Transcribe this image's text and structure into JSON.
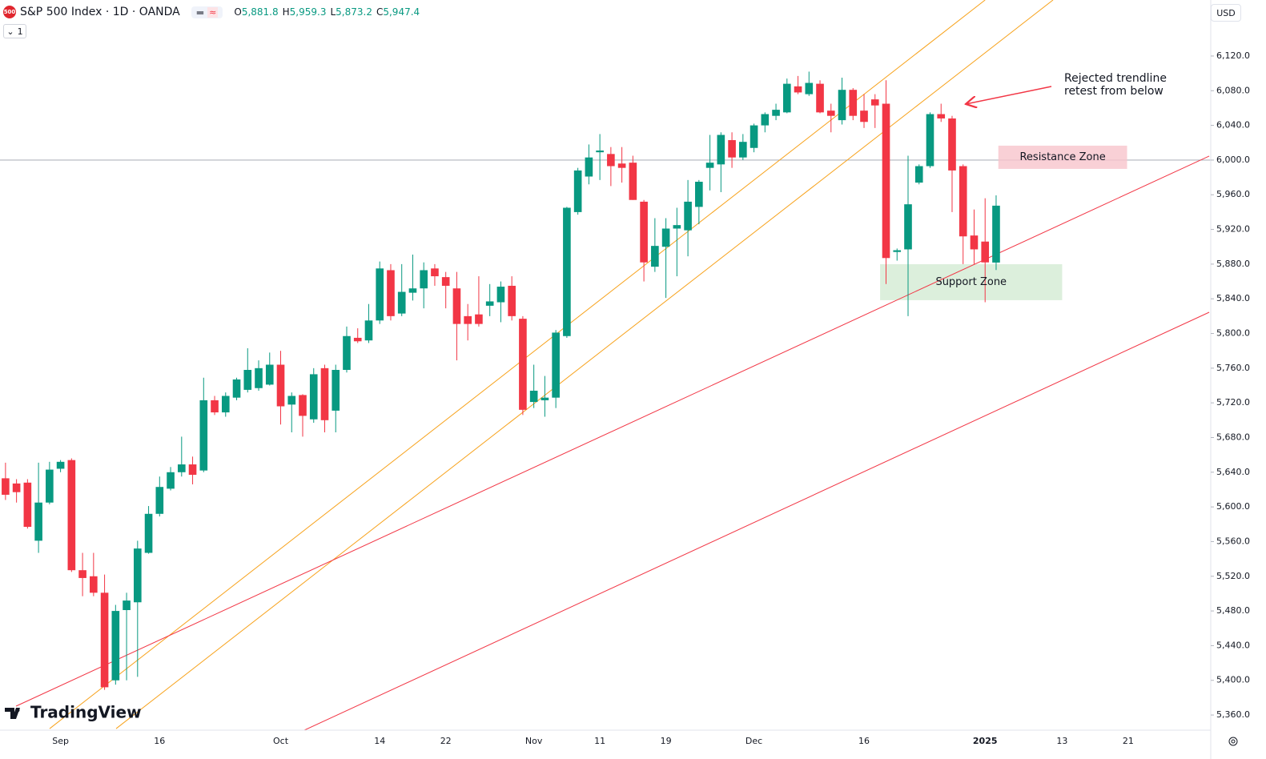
{
  "header": {
    "badge": "500",
    "title": "S&P 500 Index · 1D · OANDA",
    "ohlc": [
      {
        "label": "O",
        "value": "5,881.8"
      },
      {
        "label": "H",
        "value": "5,959.3"
      },
      {
        "label": "L",
        "value": "5,873.2"
      },
      {
        "label": "C",
        "value": "5,947.4"
      }
    ],
    "collapse_button": "1",
    "currency": "USD",
    "brand": "TradingView"
  },
  "chart_data": {
    "type": "candlestick",
    "up_color": "#089981",
    "down_color": "#f23645",
    "grid": false,
    "categories": [
      null,
      null,
      null,
      null,
      null,
      "Sep",
      null,
      null,
      null,
      null,
      null,
      null,
      null,
      null,
      "16",
      null,
      null,
      null,
      null,
      null,
      null,
      null,
      null,
      null,
      null,
      "Oct",
      null,
      null,
      null,
      null,
      null,
      null,
      null,
      null,
      "14",
      null,
      null,
      null,
      null,
      null,
      "22",
      null,
      null,
      null,
      null,
      null,
      null,
      null,
      "Nov",
      null,
      null,
      null,
      null,
      null,
      "11",
      null,
      null,
      null,
      null,
      null,
      "19",
      null,
      null,
      null,
      null,
      null,
      null,
      null,
      "Dec",
      null,
      null,
      null,
      null,
      null,
      null,
      null,
      null,
      null,
      "16",
      null,
      null,
      null,
      null,
      null,
      null,
      null,
      null,
      null,
      null,
      "2025",
      null,
      null,
      null,
      null,
      null,
      null,
      "13",
      null,
      null,
      null,
      null,
      null,
      "21",
      null,
      null,
      null,
      null,
      null,
      null,
      null
    ],
    "ohlc": [
      [
        5633,
        5651,
        5608,
        5614
      ],
      [
        5627,
        5632,
        5605,
        5617
      ],
      [
        5628,
        5632,
        5575,
        5577
      ],
      [
        5561,
        5651,
        5547,
        5605
      ],
      [
        5605,
        5652,
        5603,
        5643
      ],
      [
        5644,
        5654,
        5640,
        5652
      ],
      [
        5654,
        5656,
        5525,
        5527
      ],
      [
        5527,
        5547,
        5497,
        5518
      ],
      [
        5520,
        5547,
        5497,
        5501
      ],
      [
        5501,
        5522,
        5389,
        5392
      ],
      [
        5400,
        5487,
        5395,
        5480
      ],
      [
        5481,
        5501,
        5400,
        5492
      ],
      [
        5490,
        5561,
        5404,
        5552
      ],
      [
        5547,
        5601,
        5546,
        5592
      ],
      [
        5592,
        5635,
        5589,
        5623
      ],
      [
        5621,
        5646,
        5619,
        5640
      ],
      [
        5640,
        5681,
        5635,
        5649
      ],
      [
        5649,
        5658,
        5626,
        5637
      ],
      [
        5642,
        5749,
        5640,
        5723
      ],
      [
        5723,
        5728,
        5706,
        5709
      ],
      [
        5709,
        5732,
        5704,
        5728
      ],
      [
        5726,
        5749,
        5723,
        5747
      ],
      [
        5735,
        5783,
        5732,
        5758
      ],
      [
        5737,
        5769,
        5734,
        5760
      ],
      [
        5741,
        5778,
        5740,
        5764
      ],
      [
        5764,
        5780,
        5695,
        5716
      ],
      [
        5718,
        5732,
        5686,
        5728
      ],
      [
        5729,
        5730,
        5681,
        5705
      ],
      [
        5701,
        5760,
        5697,
        5753
      ],
      [
        5760,
        5764,
        5686,
        5700
      ],
      [
        5711,
        5764,
        5686,
        5758
      ],
      [
        5758,
        5808,
        5755,
        5797
      ],
      [
        5795,
        5806,
        5789,
        5791
      ],
      [
        5792,
        5834,
        5789,
        5815
      ],
      [
        5815,
        5883,
        5811,
        5875
      ],
      [
        5873,
        5880,
        5815,
        5820
      ],
      [
        5823,
        5880,
        5820,
        5848
      ],
      [
        5847,
        5891,
        5838,
        5852
      ],
      [
        5852,
        5882,
        5829,
        5873
      ],
      [
        5875,
        5880,
        5855,
        5866
      ],
      [
        5865,
        5871,
        5829,
        5855
      ],
      [
        5852,
        5871,
        5769,
        5811
      ],
      [
        5820,
        5834,
        5792,
        5811
      ],
      [
        5822,
        5866,
        5808,
        5811
      ],
      [
        5832,
        5857,
        5820,
        5837
      ],
      [
        5836,
        5860,
        5813,
        5854
      ],
      [
        5855,
        5866,
        5815,
        5820
      ],
      [
        5817,
        5820,
        5706,
        5712
      ],
      [
        5721,
        5764,
        5714,
        5734
      ],
      [
        5723,
        5751,
        5704,
        5726
      ],
      [
        5726,
        5804,
        5714,
        5801
      ],
      [
        5797,
        5946,
        5795,
        5945
      ],
      [
        5940,
        5991,
        5937,
        5988
      ],
      [
        5981,
        6018,
        5972,
        6003
      ],
      [
        6009,
        6030,
        5977,
        6011
      ],
      [
        6007,
        6015,
        5970,
        5993
      ],
      [
        5996,
        6015,
        5974,
        5991
      ],
      [
        5997,
        6005,
        5954,
        5954
      ],
      [
        5952,
        5954,
        5860,
        5882
      ],
      [
        5877,
        5933,
        5871,
        5901
      ],
      [
        5900,
        5933,
        5841,
        5921
      ],
      [
        5921,
        5945,
        5866,
        5925
      ],
      [
        5919,
        5977,
        5889,
        5952
      ],
      [
        5946,
        5977,
        5926,
        5975
      ],
      [
        5991,
        6029,
        5965,
        5997
      ],
      [
        5995,
        6032,
        5963,
        6029
      ],
      [
        6023,
        6032,
        5991,
        6003
      ],
      [
        6003,
        6030,
        6000,
        6021
      ],
      [
        6014,
        6042,
        6009,
        6040
      ],
      [
        6040,
        6055,
        6032,
        6053
      ],
      [
        6051,
        6065,
        6046,
        6058
      ],
      [
        6055,
        6094,
        6054,
        6088
      ],
      [
        6085,
        6097,
        6076,
        6078
      ],
      [
        6076,
        6102,
        6074,
        6089
      ],
      [
        6088,
        6092,
        6054,
        6055
      ],
      [
        6057,
        6065,
        6032,
        6051
      ],
      [
        6046,
        6095,
        6041,
        6081
      ],
      [
        6081,
        6083,
        6046,
        6051
      ],
      [
        6057,
        6076,
        6037,
        6044
      ],
      [
        6070,
        6076,
        6037,
        6063
      ],
      [
        6065,
        6092,
        5857,
        5887
      ],
      [
        5894,
        5898,
        5884,
        5896
      ],
      [
        5897,
        6005,
        5820,
        5949
      ],
      [
        5974,
        5995,
        5972,
        5993
      ],
      [
        5993,
        6055,
        5991,
        6053
      ],
      [
        6053,
        6065,
        6044,
        6048
      ],
      [
        6048,
        6051,
        5940,
        5988
      ],
      [
        5993,
        5995,
        5880,
        5912
      ],
      [
        5913,
        5943,
        5880,
        5897
      ],
      [
        5906,
        5956,
        5836,
        5882
      ],
      [
        5881.8,
        5959.3,
        5873.2,
        5947.4
      ],
      null,
      null,
      null,
      null,
      null,
      null,
      null,
      null,
      null,
      null,
      null,
      null,
      null,
      null,
      null,
      null,
      null,
      null,
      null
    ],
    "ylim": [
      5342.5,
      6184.6
    ],
    "yticks": [
      {
        "value": 5360,
        "label": "5,360.0"
      },
      {
        "value": 5400,
        "label": "5,400.0"
      },
      {
        "value": 5440,
        "label": "5,440.0"
      },
      {
        "value": 5480,
        "label": "5,480.0"
      },
      {
        "value": 5520,
        "label": "5,520.0"
      },
      {
        "value": 5560,
        "label": "5,560.0"
      },
      {
        "value": 5600,
        "label": "5,600.0"
      },
      {
        "value": 5640,
        "label": "5,640.0"
      },
      {
        "value": 5680,
        "label": "5,680.0"
      },
      {
        "value": 5720,
        "label": "5,720.0"
      },
      {
        "value": 5760,
        "label": "5,760.0"
      },
      {
        "value": 5800,
        "label": "5,800.0"
      },
      {
        "value": 5840,
        "label": "5,840.0"
      },
      {
        "value": 5880,
        "label": "5,880.0"
      },
      {
        "value": 5920,
        "label": "5,920.0"
      },
      {
        "value": 5960,
        "label": "5,960.0"
      },
      {
        "value": 6000,
        "label": "6,000.0"
      },
      {
        "value": 6040,
        "label": "6,040.0"
      },
      {
        "value": 6080,
        "label": "6,080.0"
      },
      {
        "value": 6120,
        "label": "6,120.0"
      }
    ],
    "hline": 6000,
    "trendlines": [
      {
        "color": "#f7a21b",
        "points": [
          [
            4.01,
            5344.3
          ],
          [
            89.0,
            6184.6
          ]
        ]
      },
      {
        "color": "#f7a21b",
        "points": [
          [
            10.05,
            5344.3
          ],
          [
            95.17,
            6184.6
          ]
        ]
      },
      {
        "color": "#f23645",
        "points": [
          [
            0.96,
            5370.2
          ],
          [
            109.36,
            6004.6
          ]
        ]
      },
      {
        "color": "#f23645",
        "points": [
          [
            27.15,
            5342.5
          ],
          [
            109.36,
            5824.5
          ]
        ]
      }
    ],
    "zones": [
      {
        "label": "Resistance Zone",
        "color": "#f8c4cc",
        "x": [
          90.2,
          101.9
        ],
        "y": [
          5989.8,
          6016.6
        ]
      },
      {
        "label": "Support Zone",
        "color": "#d3ebd3",
        "x": [
          79.46,
          96.0
        ],
        "y": [
          5838.4,
          5879.9
        ]
      }
    ],
    "annotation": [
      "Rejected trendline",
      "retest from below"
    ]
  }
}
